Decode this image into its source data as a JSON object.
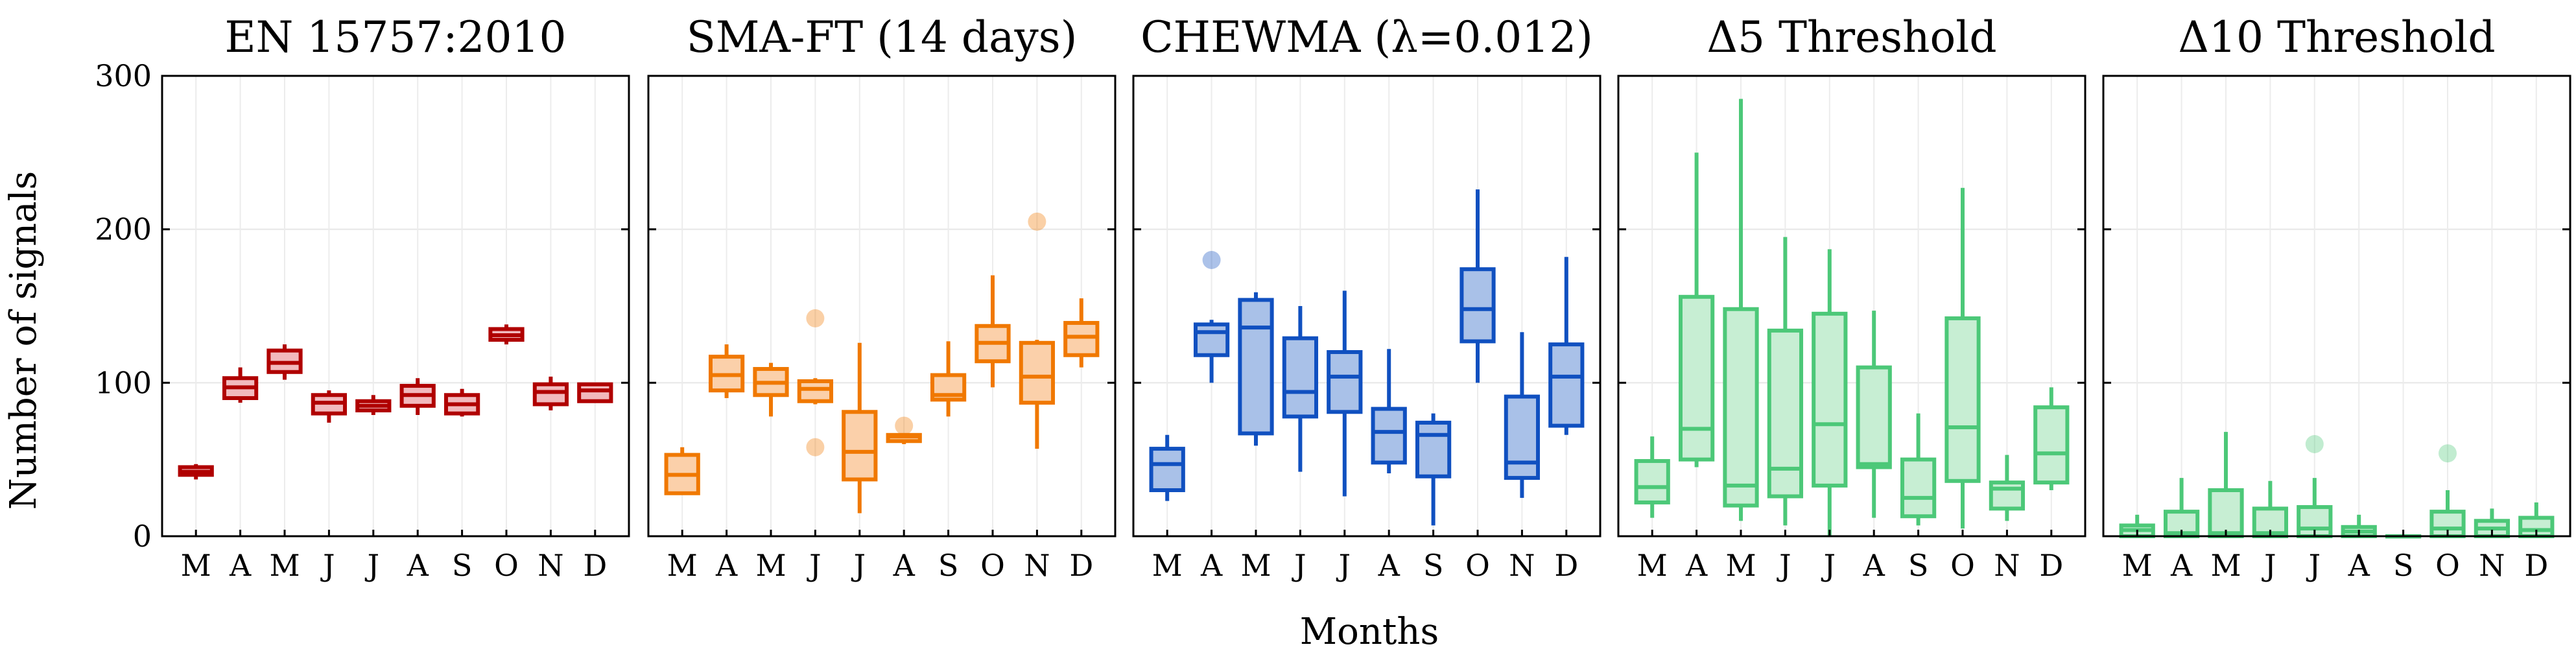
{
  "figure": {
    "xlabel": "Months",
    "ylabel": "Number of signals",
    "shared_y": {
      "ylim": [
        0,
        300
      ],
      "yticks": [
        0,
        100,
        200,
        300
      ]
    }
  },
  "chart_data": [
    {
      "type": "box",
      "title": "EN 15757:2010",
      "color": "#b00000",
      "fill": "#f2b9bd",
      "categories": [
        "M",
        "A",
        "M",
        "J",
        "J",
        "A",
        "S",
        "O",
        "N",
        "D"
      ],
      "ylim": [
        0,
        300
      ],
      "boxes": [
        {
          "min": 37,
          "q1": 40,
          "median": 42,
          "q3": 45,
          "max": 47,
          "outliers": []
        },
        {
          "min": 87,
          "q1": 90,
          "median": 97,
          "q3": 103,
          "max": 110,
          "outliers": []
        },
        {
          "min": 102,
          "q1": 107,
          "median": 113,
          "q3": 121,
          "max": 125,
          "outliers": []
        },
        {
          "min": 74,
          "q1": 80,
          "median": 87,
          "q3": 92,
          "max": 95,
          "outliers": []
        },
        {
          "min": 79,
          "q1": 82,
          "median": 85,
          "q3": 88,
          "max": 92,
          "outliers": []
        },
        {
          "min": 79,
          "q1": 85,
          "median": 92,
          "q3": 98,
          "max": 103,
          "outliers": []
        },
        {
          "min": 78,
          "q1": 80,
          "median": 86,
          "q3": 92,
          "max": 96,
          "outliers": []
        },
        {
          "min": 125,
          "q1": 128,
          "median": 131,
          "q3": 135,
          "max": 138,
          "outliers": []
        },
        {
          "min": 82,
          "q1": 86,
          "median": 94,
          "q3": 99,
          "max": 104,
          "outliers": []
        },
        {
          "min": 88,
          "q1": 88,
          "median": 95,
          "q3": 99,
          "max": 99,
          "outliers": []
        }
      ]
    },
    {
      "type": "box",
      "title": "SMA-FT (14 days)",
      "color": "#f07800",
      "fill": "#fbd0aa",
      "categories": [
        "M",
        "A",
        "M",
        "J",
        "J",
        "A",
        "S",
        "O",
        "N",
        "D"
      ],
      "ylim": [
        0,
        300
      ],
      "boxes": [
        {
          "min": 27,
          "q1": 28,
          "median": 40,
          "q3": 53,
          "max": 58,
          "outliers": []
        },
        {
          "min": 90,
          "q1": 95,
          "median": 105,
          "q3": 117,
          "max": 125,
          "outliers": []
        },
        {
          "min": 78,
          "q1": 92,
          "median": 100,
          "q3": 109,
          "max": 113,
          "outliers": []
        },
        {
          "min": 86,
          "q1": 88,
          "median": 96,
          "q3": 101,
          "max": 103,
          "outliers": [
            58,
            142
          ]
        },
        {
          "min": 15,
          "q1": 37,
          "median": 55,
          "q3": 81,
          "max": 126,
          "outliers": []
        },
        {
          "min": 60,
          "q1": 62,
          "median": 65,
          "q3": 66,
          "max": 67,
          "outliers": [
            72
          ]
        },
        {
          "min": 78,
          "q1": 89,
          "median": 92,
          "q3": 105,
          "max": 127,
          "outliers": []
        },
        {
          "min": 97,
          "q1": 114,
          "median": 126,
          "q3": 137,
          "max": 170,
          "outliers": []
        },
        {
          "min": 57,
          "q1": 87,
          "median": 104,
          "q3": 126,
          "max": 128,
          "outliers": [
            205
          ]
        },
        {
          "min": 110,
          "q1": 118,
          "median": 130,
          "q3": 139,
          "max": 155,
          "outliers": []
        }
      ]
    },
    {
      "type": "box",
      "title": "CHEWMA (λ=0.012)",
      "color": "#1050c0",
      "fill": "#a9c1e8",
      "categories": [
        "M",
        "A",
        "M",
        "J",
        "J",
        "A",
        "S",
        "O",
        "N",
        "D"
      ],
      "ylim": [
        0,
        300
      ],
      "boxes": [
        {
          "min": 23,
          "q1": 30,
          "median": 47,
          "q3": 57,
          "max": 66,
          "outliers": []
        },
        {
          "min": 100,
          "q1": 118,
          "median": 133,
          "q3": 138,
          "max": 141,
          "outliers": [
            180
          ]
        },
        {
          "min": 59,
          "q1": 67,
          "median": 136,
          "q3": 154,
          "max": 159,
          "outliers": []
        },
        {
          "min": 42,
          "q1": 78,
          "median": 94,
          "q3": 129,
          "max": 150,
          "outliers": []
        },
        {
          "min": 26,
          "q1": 81,
          "median": 104,
          "q3": 120,
          "max": 160,
          "outliers": []
        },
        {
          "min": 41,
          "q1": 48,
          "median": 68,
          "q3": 83,
          "max": 122,
          "outliers": []
        },
        {
          "min": 7,
          "q1": 39,
          "median": 66,
          "q3": 74,
          "max": 80,
          "outliers": []
        },
        {
          "min": 100,
          "q1": 127,
          "median": 148,
          "q3": 174,
          "max": 226,
          "outliers": []
        },
        {
          "min": 25,
          "q1": 38,
          "median": 48,
          "q3": 91,
          "max": 133,
          "outliers": []
        },
        {
          "min": 66,
          "q1": 72,
          "median": 104,
          "q3": 125,
          "max": 182,
          "outliers": []
        }
      ]
    },
    {
      "type": "box",
      "title": "Δ5 Threshold",
      "color": "#4cc878",
      "fill": "#c7eed3",
      "categories": [
        "M",
        "A",
        "M",
        "J",
        "J",
        "A",
        "S",
        "O",
        "N",
        "D"
      ],
      "ylim": [
        0,
        300
      ],
      "boxes": [
        {
          "min": 12,
          "q1": 22,
          "median": 32,
          "q3": 49,
          "max": 65,
          "outliers": []
        },
        {
          "min": 45,
          "q1": 50,
          "median": 70,
          "q3": 156,
          "max": 250,
          "outliers": []
        },
        {
          "min": 10,
          "q1": 20,
          "median": 33,
          "q3": 148,
          "max": 285,
          "outliers": []
        },
        {
          "min": 7,
          "q1": 26,
          "median": 44,
          "q3": 134,
          "max": 195,
          "outliers": []
        },
        {
          "min": 0,
          "q1": 33,
          "median": 73,
          "q3": 145,
          "max": 187,
          "outliers": []
        },
        {
          "min": 12,
          "q1": 45,
          "median": 47,
          "q3": 110,
          "max": 147,
          "outliers": []
        },
        {
          "min": 7,
          "q1": 13,
          "median": 25,
          "q3": 50,
          "max": 80,
          "outliers": []
        },
        {
          "min": 5,
          "q1": 36,
          "median": 71,
          "q3": 142,
          "max": 227,
          "outliers": []
        },
        {
          "min": 10,
          "q1": 18,
          "median": 31,
          "q3": 35,
          "max": 53,
          "outliers": []
        },
        {
          "min": 30,
          "q1": 35,
          "median": 54,
          "q3": 84,
          "max": 97,
          "outliers": []
        }
      ]
    },
    {
      "type": "box",
      "title": "Δ10 Threshold",
      "color": "#4cc878",
      "fill": "#c7eed3",
      "categories": [
        "M",
        "A",
        "M",
        "J",
        "J",
        "A",
        "S",
        "O",
        "N",
        "D"
      ],
      "ylim": [
        0,
        300
      ],
      "boxes": [
        {
          "min": 0,
          "q1": 0,
          "median": 4,
          "q3": 7,
          "max": 14,
          "outliers": []
        },
        {
          "min": 0,
          "q1": 0,
          "median": 2,
          "q3": 16,
          "max": 38,
          "outliers": []
        },
        {
          "min": 0,
          "q1": 0,
          "median": 2,
          "q3": 30,
          "max": 68,
          "outliers": []
        },
        {
          "min": 0,
          "q1": 0,
          "median": 2,
          "q3": 18,
          "max": 36,
          "outliers": []
        },
        {
          "min": 0,
          "q1": 0,
          "median": 5,
          "q3": 19,
          "max": 38,
          "outliers": [
            60
          ]
        },
        {
          "min": 0,
          "q1": 0,
          "median": 3,
          "q3": 6,
          "max": 14,
          "outliers": []
        },
        {
          "min": 0,
          "q1": 0,
          "median": 0,
          "q3": 0,
          "max": 0,
          "outliers": []
        },
        {
          "min": 0,
          "q1": 0,
          "median": 5,
          "q3": 16,
          "max": 30,
          "outliers": [
            54
          ]
        },
        {
          "min": 0,
          "q1": 0,
          "median": 5,
          "q3": 10,
          "max": 18,
          "outliers": []
        },
        {
          "min": 0,
          "q1": 0,
          "median": 4,
          "q3": 12,
          "max": 22,
          "outliers": []
        }
      ]
    }
  ]
}
